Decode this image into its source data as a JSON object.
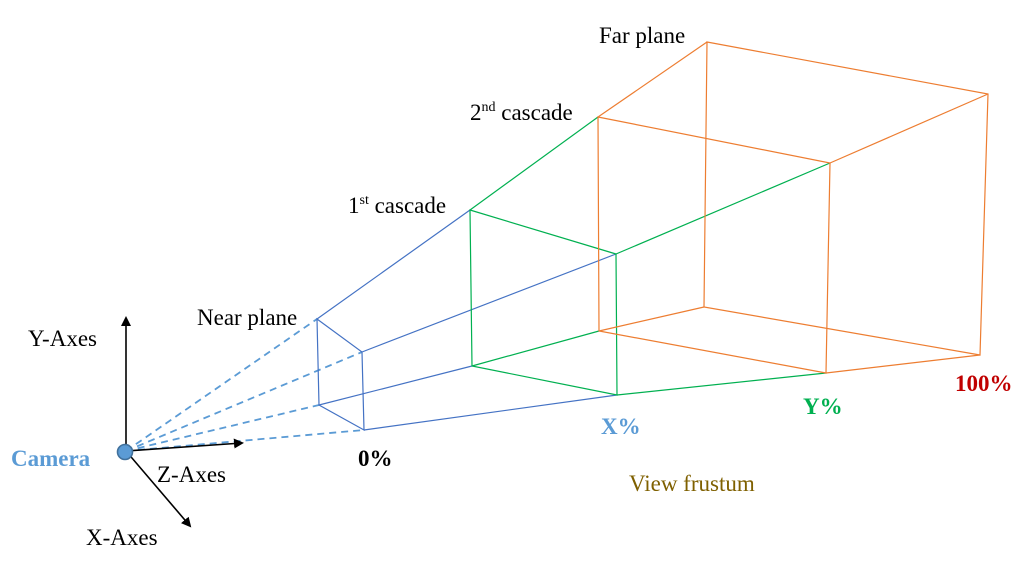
{
  "colors": {
    "blue": "#4472c4",
    "green": "#00b050",
    "orange": "#ed7d31",
    "camera_fill": "#5b9bd5",
    "camera_label": "#5b9bd5",
    "x_percent": "#5b9bd5",
    "y_percent": "#00b050",
    "hundred_percent": "#c00000",
    "view_frustum": "#7f6000",
    "text": "#000000"
  },
  "labels": {
    "far_plane": "Far plane",
    "second_cascade_num": "2",
    "second_cascade_sup": "nd",
    "second_cascade_text": " cascade",
    "first_cascade_num": "1",
    "first_cascade_sup": "st",
    "first_cascade_text": " cascade",
    "near_plane": "Near plane",
    "y_axes": "Y-Axes",
    "z_axes": "Z-Axes",
    "x_axes": "X-Axes",
    "camera": "Camera",
    "zero_percent": "0%",
    "x_percent": "X%",
    "y_percent": "Y%",
    "hundred_percent": "100%",
    "view_frustum": "View frustum"
  }
}
